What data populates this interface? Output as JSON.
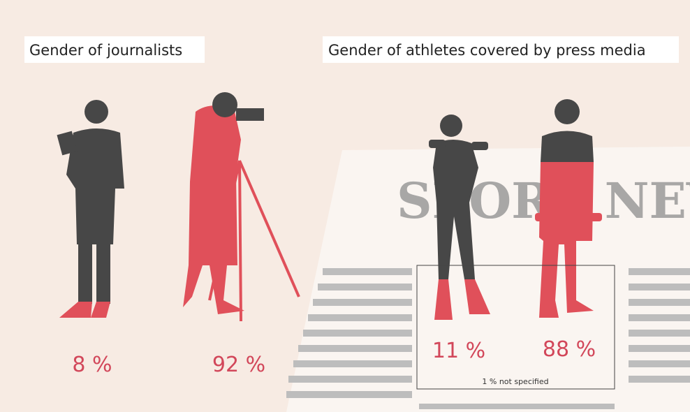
{
  "panels": [
    {
      "title": "Gender of journalists",
      "figures": [
        {
          "label": "8 %"
        },
        {
          "label": "92 %"
        }
      ]
    },
    {
      "title": "Gender of athletes covered by press media",
      "figures": [
        {
          "label": "11 %"
        },
        {
          "label": "88 %"
        }
      ],
      "note": "1 % not specified",
      "watermark": "SPORT NEWS"
    }
  ]
}
